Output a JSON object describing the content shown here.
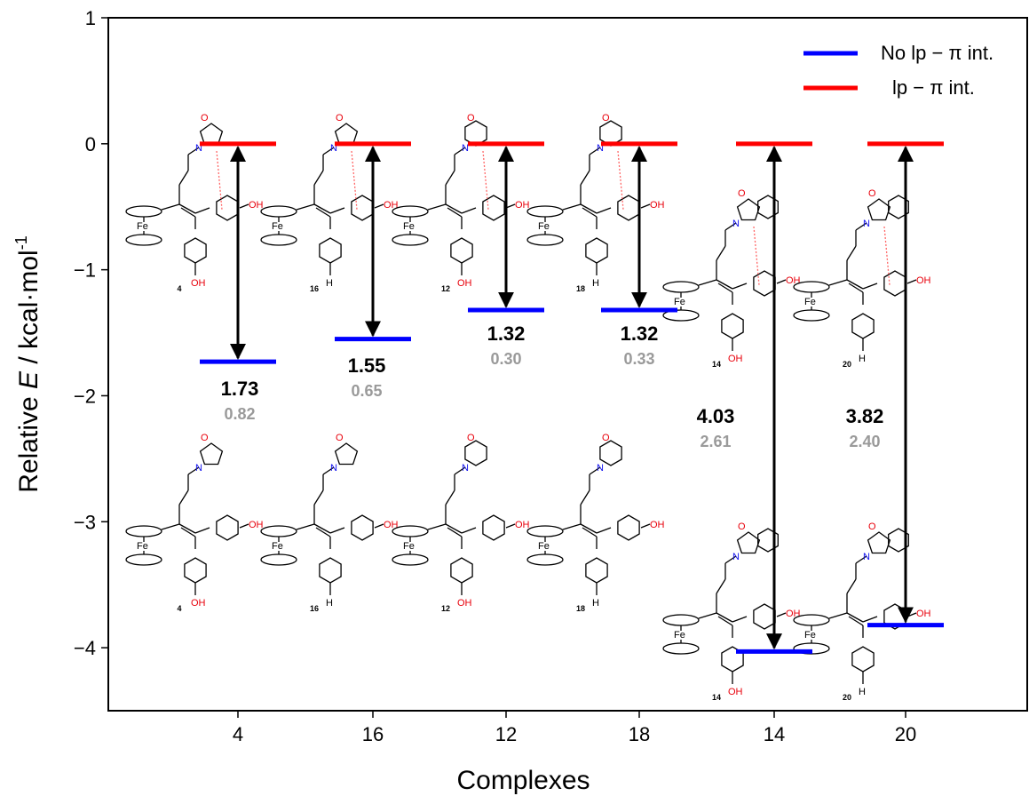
{
  "chart_data": {
    "type": "scatter",
    "title": "",
    "xlabel": "Complexes",
    "ylabel": "Relative E / kcal·mol-1",
    "ylabel_parts": {
      "prefix": "Relative ",
      "italic": "E",
      "suffix": " / kcal·mol",
      "sup": "-1"
    },
    "ylim": [
      -4.5,
      1
    ],
    "yticks": [
      "1",
      "0",
      "−1",
      "−2",
      "−3",
      "−4"
    ],
    "ytick_values": [
      1,
      0,
      -1,
      -2,
      -3,
      -4
    ],
    "categories": [
      "4",
      "16",
      "12",
      "18",
      "14",
      "20"
    ],
    "legend_position": "top-right",
    "series": [
      {
        "name": "No lp − π int.",
        "color": "#0000ff",
        "values": [
          -1.73,
          -1.55,
          -1.32,
          -1.32,
          -4.03,
          -3.82
        ]
      },
      {
        "name": "lp − π int.",
        "color": "#ff0000",
        "values": [
          0,
          0,
          0,
          0,
          0,
          0
        ]
      }
    ],
    "energy_differences": [
      "1.73",
      "1.55",
      "1.32",
      "1.32",
      "4.03",
      "3.82"
    ],
    "secondary_values": [
      "0.82",
      "0.65",
      "0.30",
      "0.33",
      "2.61",
      "2.40"
    ],
    "structure_labels": {
      "top": [
        "4",
        "16",
        "12",
        "18",
        "14",
        "20"
      ],
      "bottom": [
        "4",
        "16",
        "12",
        "18",
        "14",
        "20"
      ]
    },
    "structure_atoms": {
      "iron": "Fe",
      "oxygen": "O",
      "nitrogen": "N",
      "hydroxyl": "OH",
      "hydrogen": "H"
    },
    "colors": {
      "blue": "#0000ff",
      "red": "#ff0000",
      "arrow": "#000000",
      "secondary_text": "#9a9a9a",
      "atom_o": "#e8000b",
      "atom_n": "#1010ee"
    }
  }
}
